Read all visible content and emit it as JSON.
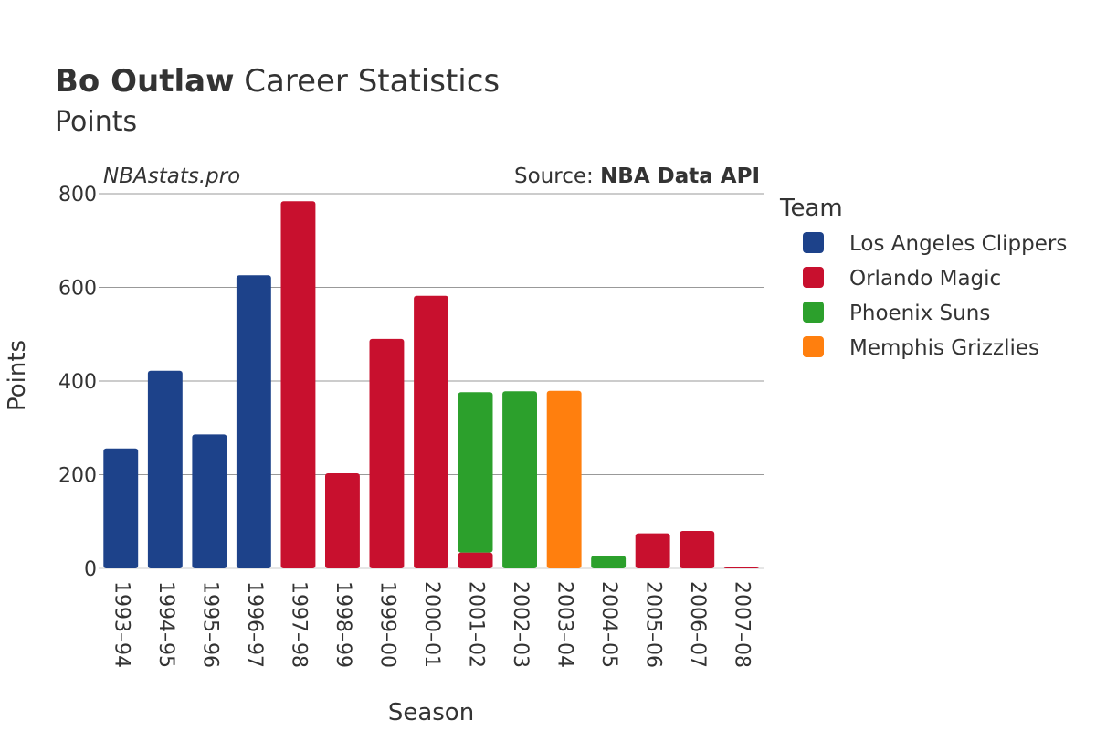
{
  "header": {
    "title_bold": "Bo Outlaw",
    "title_rest": " Career Statistics",
    "subtitle": "Points"
  },
  "watermark": "NBAstats.pro",
  "source": {
    "prefix": "Source: ",
    "name": "NBA Data API"
  },
  "legend": {
    "title": "Team"
  },
  "colors": {
    "Los Angeles Clippers": "#1d428a",
    "Orlando Magic": "#c8102e",
    "Phoenix Suns": "#2ca02c",
    "Memphis Grizzlies": "#ff7f0e",
    "grid": "#999999",
    "text": "#333333"
  },
  "chart_data": {
    "type": "bar",
    "stacked": true,
    "xlabel": "Season",
    "ylabel": "Points",
    "ylim": [
      0,
      800
    ],
    "yticks": [
      0,
      200,
      400,
      600,
      800
    ],
    "grid": true,
    "legend_position": "right",
    "categories": [
      "1993–94",
      "1994–95",
      "1995–96",
      "1996–97",
      "1997–98",
      "1998–99",
      "1999–00",
      "2000–01",
      "2001–02",
      "2002–03",
      "2003–04",
      "2004–05",
      "2005–06",
      "2006–07",
      "2007–08"
    ],
    "series": [
      {
        "name": "Los Angeles Clippers",
        "values": [
          256,
          422,
          286,
          626,
          0,
          0,
          0,
          0,
          0,
          0,
          0,
          0,
          0,
          0,
          0
        ]
      },
      {
        "name": "Orlando Magic",
        "values": [
          0,
          0,
          0,
          0,
          784,
          203,
          490,
          582,
          34,
          0,
          0,
          0,
          75,
          80,
          2
        ]
      },
      {
        "name": "Phoenix Suns",
        "values": [
          0,
          0,
          0,
          0,
          0,
          0,
          0,
          0,
          342,
          378,
          0,
          27,
          0,
          0,
          0
        ]
      },
      {
        "name": "Memphis Grizzlies",
        "values": [
          0,
          0,
          0,
          0,
          0,
          0,
          0,
          0,
          0,
          0,
          379,
          0,
          0,
          0,
          0
        ]
      }
    ]
  }
}
